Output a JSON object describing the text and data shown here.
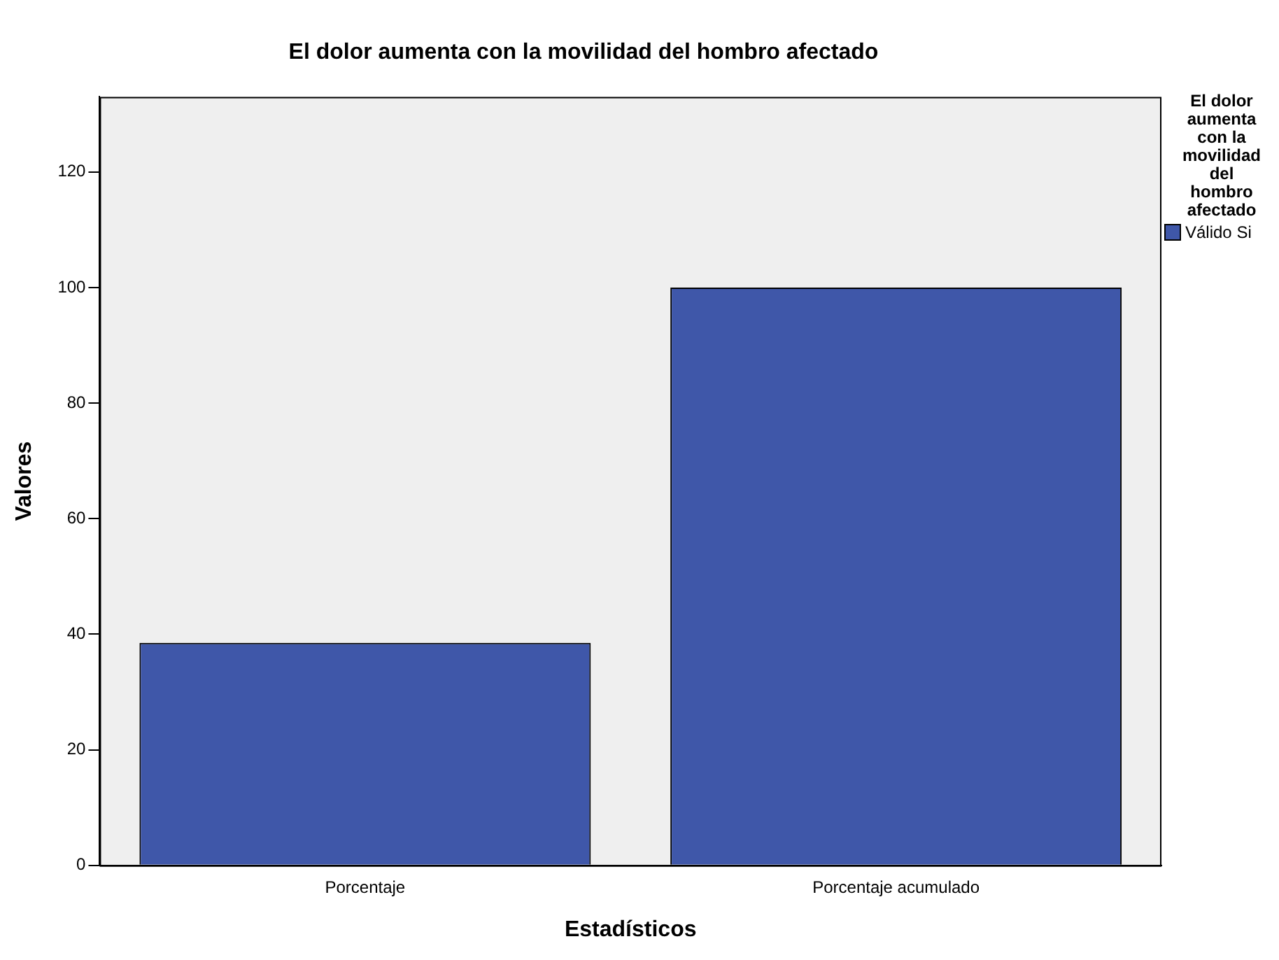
{
  "chart_data": {
    "type": "bar",
    "title": "El dolor aumenta con la movilidad del hombro afectado",
    "xlabel": "Estadísticos",
    "ylabel": "Valores",
    "legend_title": "El dolor aumenta con la movilidad del hombro afectado",
    "categories": [
      "Porcentaje",
      "Porcentaje acumulado"
    ],
    "series": [
      {
        "name": "Válido Si",
        "color": "#3f57a9",
        "values": [
          38.5,
          100
        ]
      }
    ],
    "ylim": [
      0,
      133
    ],
    "yticks": [
      0,
      20,
      40,
      60,
      80,
      100,
      120
    ],
    "grid": false,
    "legend": "right"
  }
}
